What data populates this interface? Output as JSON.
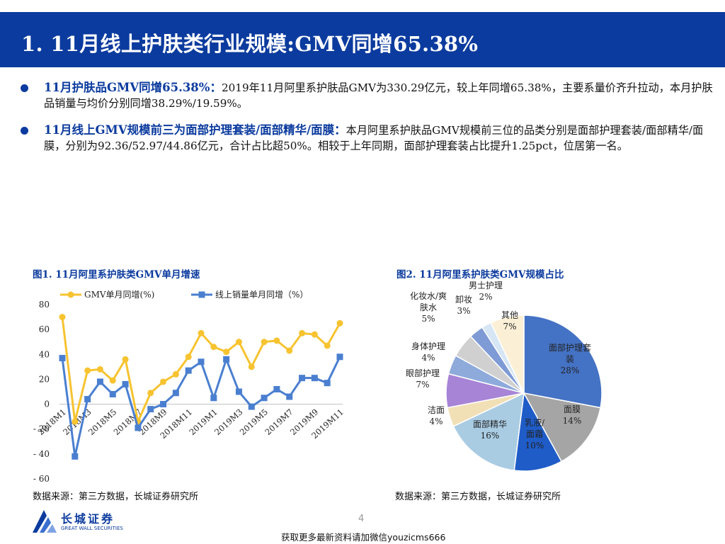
{
  "header": {
    "title": "1. 11月线上护肤类行业规模:GMV同增65.38%"
  },
  "bullets": [
    {
      "lead": "11月护肤品GMV同增65.38%：",
      "text": "2019年11月阿里系护肤品GMV为330.29亿元，较上年同增65.38%，主要系量价齐升拉动，本月护肤品销量与均价分别同增38.29%/19.59%。"
    },
    {
      "lead": "11月线上GMV规模前三为面部护理套装/面部精华/面膜：",
      "text": "本月阿里系护肤品GMV规模前三位的品类分别是面部护理套装/面部精华/面膜，分别为92.36/52.97/44.86亿元，合计占比超50%。相较于上年同期，面部护理套装占比提升1.25pct，位居第一名。"
    }
  ],
  "figure1": {
    "title": "图1. 11月阿里系护肤类GMV单月增速",
    "source": "数据来源：第三方数据，长城证券研究所"
  },
  "figure2": {
    "title": "图2. 11月阿里系护肤类GMV规模占比",
    "source": "数据来源：第三方数据，长城证券研究所"
  },
  "chart_data": [
    {
      "type": "line",
      "x": [
        "2018M1",
        "2018M2",
        "2018M3",
        "2018M4",
        "2018M5",
        "2018M6",
        "2018M7",
        "2018M8",
        "2018M9",
        "2018M10",
        "2018M11",
        "2018M12",
        "2019M1",
        "2019M2",
        "2019M3",
        "2019M4",
        "2019M5",
        "2019M6",
        "2019M7",
        "2019M8",
        "2019M9",
        "2019M10",
        "2019M11"
      ],
      "x_tick_labels": [
        "2018M1",
        "2018M3",
        "2018M5",
        "2018M7",
        "2018M9",
        "2018M11",
        "2019M1",
        "2019M3",
        "2019M5",
        "2019M7",
        "2019M9",
        "2019M11"
      ],
      "y_ticks": [
        "80",
        "60",
        "40",
        "20",
        "0",
        "- 20",
        "- 40",
        "- 60"
      ],
      "ylim": [
        -60,
        80
      ],
      "legend_position": "top",
      "series": [
        {
          "name": "GMV单月同增(%)",
          "color": "#f7c330",
          "marker": "circle",
          "values": [
            70,
            -14,
            27,
            28,
            19,
            36,
            -14,
            9,
            18,
            24,
            38,
            57,
            46,
            42,
            50,
            30,
            50,
            51,
            43,
            57,
            56,
            47,
            65
          ]
        },
        {
          "name": "线上销量单月同增（%）",
          "color": "#4a7fd0",
          "marker": "square",
          "values": [
            37,
            -42,
            4,
            18,
            8,
            16,
            -19,
            -4,
            0,
            9,
            27,
            34,
            5,
            36,
            10,
            -2,
            5,
            12,
            6,
            21,
            21,
            17,
            38
          ]
        }
      ]
    },
    {
      "type": "pie",
      "slices": [
        {
          "label": "面部护理套装",
          "value": 28,
          "pct": "28%",
          "color": "#4472c4"
        },
        {
          "label": "面膜",
          "value": 14,
          "pct": "14%",
          "color": "#a5a5a5"
        },
        {
          "label": "乳液/面霜",
          "value": 10,
          "pct": "10%",
          "color": "#1f5cc7"
        },
        {
          "label": "面部精华",
          "value": 16,
          "pct": "16%",
          "color": "#a9cce3"
        },
        {
          "label": "洁面",
          "value": 4,
          "pct": "4%",
          "color": "#f1dfb6"
        },
        {
          "label": "眼部护理",
          "value": 7,
          "pct": "7%",
          "color": "#a784d6"
        },
        {
          "label": "身体护理",
          "value": 4,
          "pct": "4%",
          "color": "#8eaadb"
        },
        {
          "label": "化妆水/爽肤水",
          "value": 5,
          "pct": "5%",
          "color": "#d0d0d0"
        },
        {
          "label": "卸妆",
          "value": 3,
          "pct": "3%",
          "color": "#7f9bd6"
        },
        {
          "label": "男士护理",
          "value": 2,
          "pct": "2%",
          "color": "#d6e6f5"
        },
        {
          "label": "其他",
          "value": 7,
          "pct": "7%",
          "color": "#fbf0d6"
        }
      ],
      "label_lines": {
        "面部护理套装": [
          "面部护理套",
          "装",
          "28%"
        ],
        "面膜": [
          "面膜",
          "14%"
        ],
        "乳液/面霜": [
          "乳液/",
          "面霜",
          "10%"
        ],
        "面部精华": [
          "面部精华",
          "16%"
        ],
        "洁面": [
          "洁面",
          "4%"
        ],
        "眼部护理": [
          "眼部护理",
          "7%"
        ],
        "身体护理": [
          "身体护理",
          "4%"
        ],
        "化妆水/爽肤水": [
          "化妆水/爽",
          "肤水",
          "5%"
        ],
        "卸妆": [
          "卸妆",
          "3%"
        ],
        "男士护理": [
          "男士护理",
          "2%"
        ],
        "其他": [
          "其他",
          "7%"
        ]
      }
    }
  ],
  "logo": {
    "name_cn": "长城证券",
    "name_en": "GREAT WALL SECURITIES"
  },
  "page": {
    "number": "4"
  },
  "footer": {
    "text": "获取更多最新资料请加微信youzicms666"
  }
}
